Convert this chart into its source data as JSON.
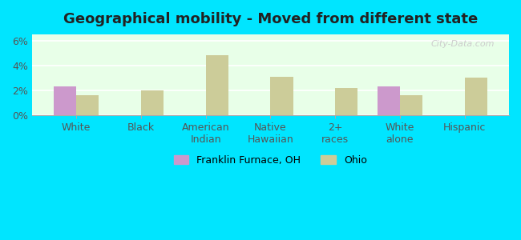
{
  "title": "Geographical mobility - Moved from different state",
  "categories": [
    "White",
    "Black",
    "American\nIndian",
    "Native\nHawaiian",
    "2+\nraces",
    "White\nalone",
    "Hispanic"
  ],
  "franklin_values": [
    2.3,
    0,
    0,
    0,
    0,
    2.3,
    0
  ],
  "ohio_values": [
    1.6,
    2.0,
    4.8,
    3.1,
    2.2,
    1.6,
    3.0
  ],
  "franklin_color": "#cc99cc",
  "ohio_color": "#cccc99",
  "bar_width": 0.35,
  "ylim": [
    0,
    6.5
  ],
  "yticks": [
    0,
    2,
    4,
    6
  ],
  "ytick_labels": [
    "0%",
    "2%",
    "4%",
    "6%"
  ],
  "plot_bg": "#e8ffe8",
  "outer_bg": "#00e5ff",
  "title_fontsize": 13,
  "legend_label_franklin": "Franklin Furnace, OH",
  "legend_label_ohio": "Ohio",
  "watermark": "City-Data.com"
}
